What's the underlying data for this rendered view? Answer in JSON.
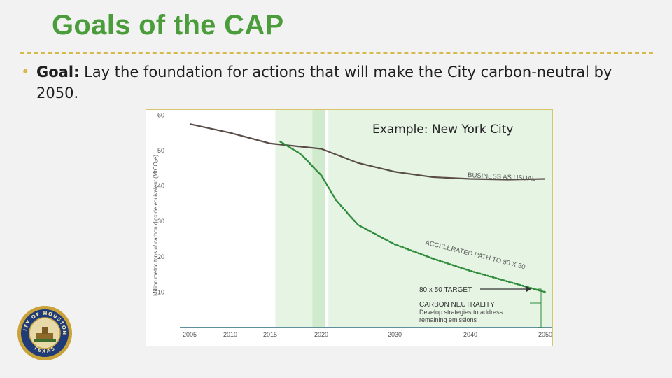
{
  "slide": {
    "title": "Goals of the CAP",
    "bullet_lead": "Goal:",
    "bullet_text": " Lay the foundation for actions that will make the City carbon-neutral by 2050."
  },
  "colors": {
    "title_green": "#4a9d3a",
    "rule_gold": "#d7b84a",
    "bau_line": "#5a4d48",
    "accelerated_path": "#2e8b3a",
    "shade_green": "#e6f4e4",
    "band_green": "#cfeacc",
    "baseline_blue": "#5f8f9a",
    "annotation_gray": "#5b5b5b"
  },
  "chart_data": {
    "type": "line",
    "annotation_title": "Example: New York City",
    "ylabel": "Million metric tons of carbon dioxide equivalent (MtCO₂e)",
    "xlim": [
      2005,
      2050
    ],
    "ylim": [
      0,
      60
    ],
    "x_ticks": [
      2005,
      2010,
      2015,
      2020,
      2030,
      2040,
      2050
    ],
    "y_ticks": [
      10,
      20,
      30,
      40,
      50,
      60
    ],
    "grid": false,
    "series": [
      {
        "name": "BUSINESS AS USUAL",
        "style": "solid",
        "x": [
          2005,
          2010,
          2015,
          2020,
          2025,
          2030,
          2035,
          2040,
          2045,
          2050
        ],
        "y": [
          57.5,
          55,
          52,
          50.5,
          46.5,
          44,
          42.5,
          42,
          41.8,
          42
        ]
      },
      {
        "name": "ACCELERATED PATH TO 80 X 50",
        "style": "dotted",
        "x": [
          2016,
          2018,
          2020,
          2022,
          2025,
          2030,
          2035,
          2040,
          2045,
          2050
        ],
        "y": [
          52.5,
          49,
          43,
          36,
          29,
          23.5,
          19.5,
          16,
          13,
          10
        ]
      }
    ],
    "highlight_band": {
      "x_start": 2019,
      "x_end": 2020.5
    },
    "annotations": {
      "target_label": "80 x 50 TARGET",
      "neutrality_title": "CARBON NEUTRALITY",
      "neutrality_line1": "Develop strategies to address",
      "neutrality_line2": "remaining emissions"
    }
  },
  "seal": {
    "top_text": "CITY OF HOUSTON",
    "bottom_text": "TEXAS"
  }
}
